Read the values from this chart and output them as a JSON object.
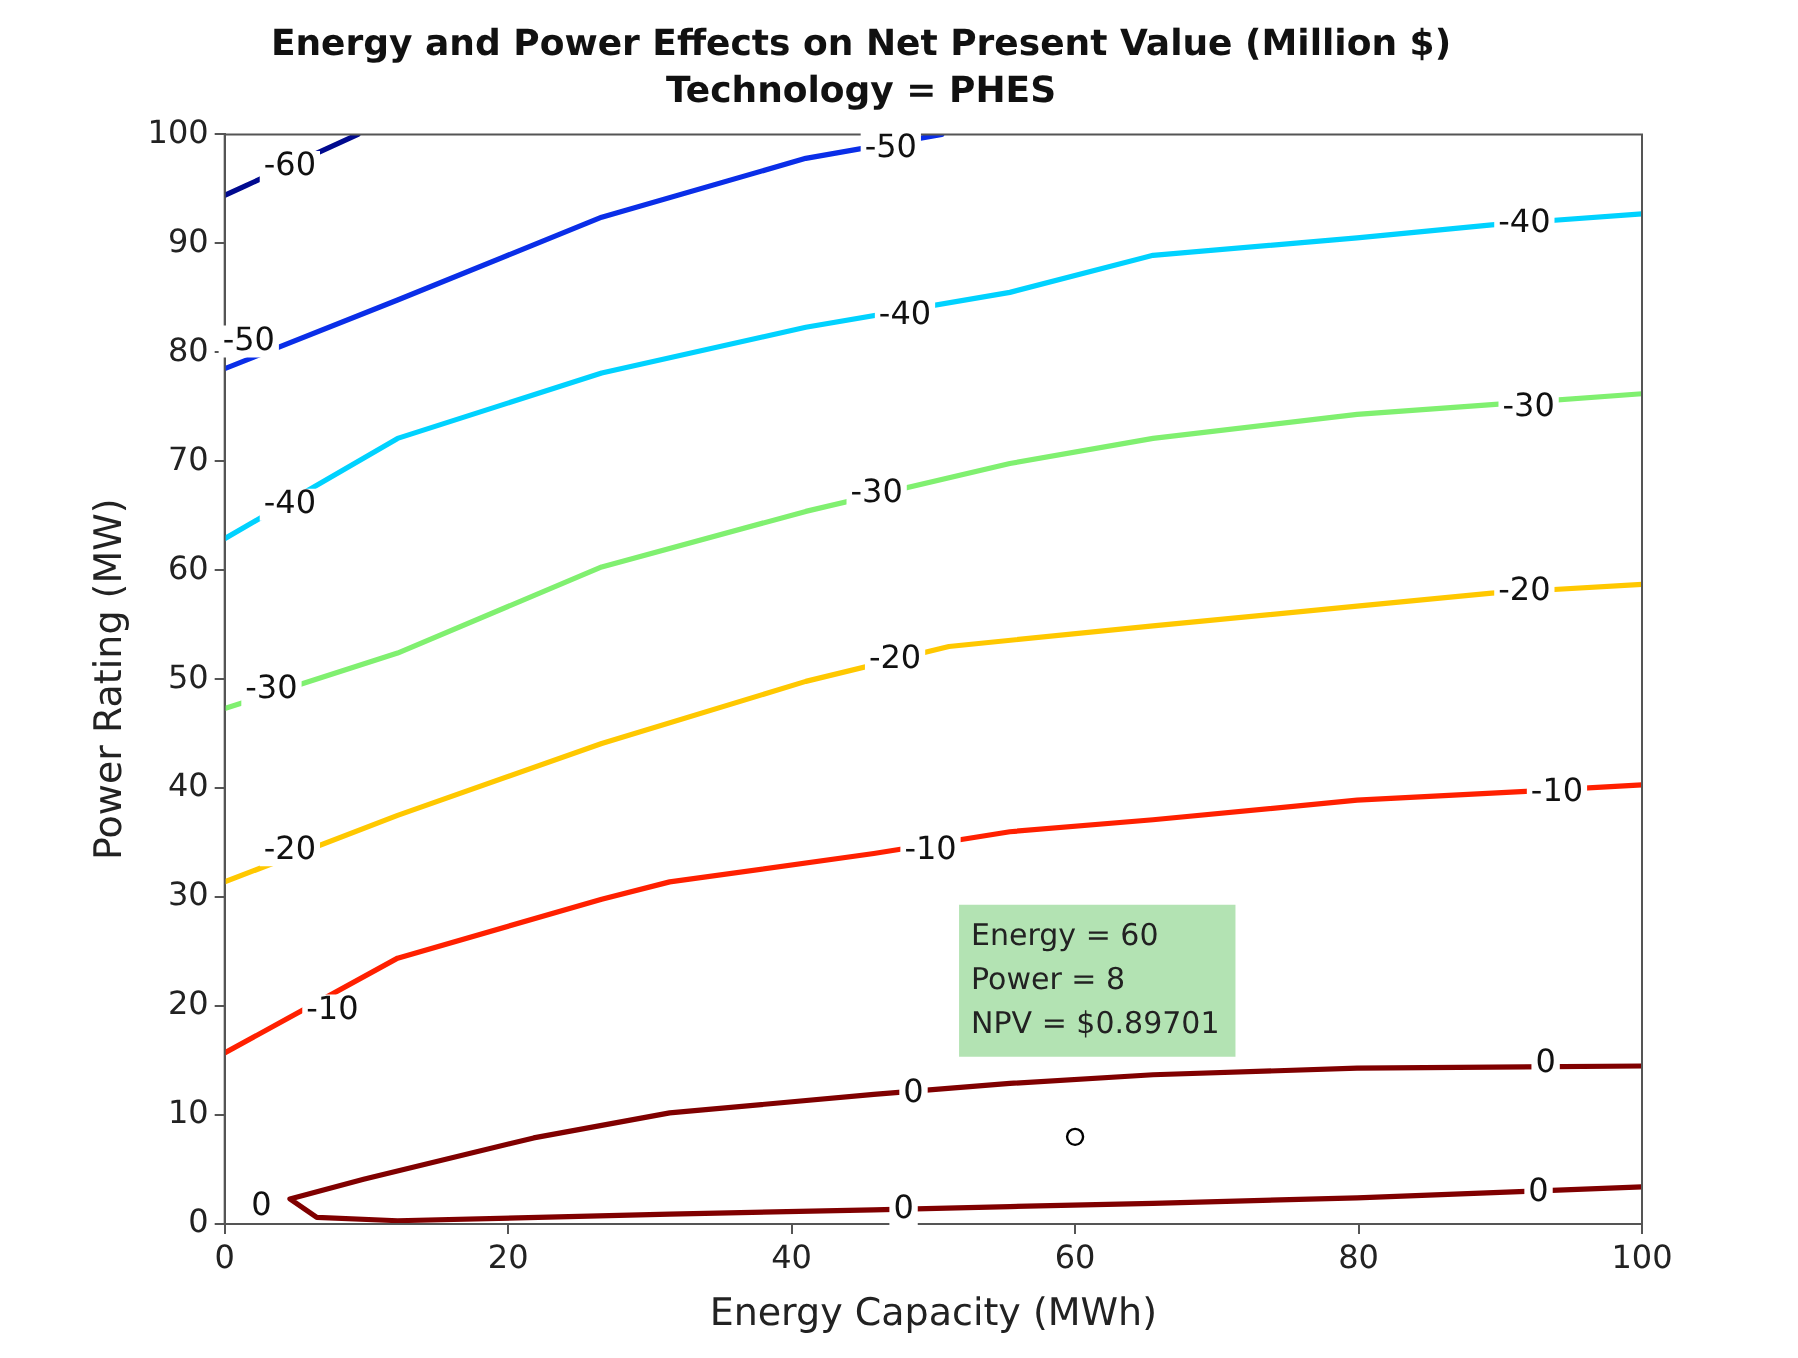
{
  "chart_data": {
    "type": "line",
    "title": "Energy and Power Effects on Net Present Value (Million $)",
    "subtitle": "Technology = PHES",
    "xlabel": "Energy Capacity (MWh)",
    "ylabel": "Power Rating (MW)",
    "xlim": [
      0,
      100
    ],
    "ylim": [
      0,
      100
    ],
    "xticks": [
      0,
      20,
      40,
      60,
      80,
      100
    ],
    "yticks": [
      0,
      10,
      20,
      30,
      40,
      50,
      60,
      70,
      80,
      90,
      100
    ],
    "grid": false,
    "legend": false,
    "marker": "none",
    "line_style": "solid",
    "series": [
      {
        "color": "#000a8f",
        "x": [
          0,
          1.5,
          9.4
        ],
        "values": [
          94.4,
          95.3,
          100
        ]
      },
      {
        "color": "#0a2ee8",
        "x": [
          0,
          12.2,
          26.6,
          41,
          50.6
        ],
        "values": [
          78.5,
          84.8,
          92.4,
          97.8,
          100
        ]
      },
      {
        "color": "#00d2ff",
        "x": [
          0,
          12.2,
          26.6,
          41,
          55.4,
          65.5,
          79.9,
          89.4,
          100
        ],
        "values": [
          62.9,
          72.1,
          78.1,
          82.3,
          85.5,
          88.9,
          90.5,
          91.7,
          92.7
        ]
      },
      {
        "color": "#80f070",
        "x": [
          0,
          12.2,
          26.6,
          41,
          55.4,
          65.5,
          79.9,
          89.4,
          100
        ],
        "values": [
          47.3,
          52.4,
          60.3,
          65.4,
          69.8,
          72.1,
          74.3,
          75.2,
          76.2
        ]
      },
      {
        "color": "#ffc800",
        "x": [
          0,
          12.2,
          26.6,
          41,
          51.1,
          65.5,
          79.9,
          89.4,
          100
        ],
        "values": [
          31.4,
          37.5,
          44.1,
          49.8,
          53,
          54.9,
          56.7,
          57.9,
          58.7
        ]
      },
      {
        "color": "#ff2000",
        "x": [
          0,
          12.2,
          26.6,
          31.4,
          45.8,
          55.4,
          65.5,
          79.9,
          91.8,
          100
        ],
        "values": [
          15.7,
          24.4,
          29.8,
          31.4,
          34,
          36,
          37.1,
          38.9,
          39.7,
          40.3
        ]
      },
      {
        "color": "#800000",
        "x": [
          100,
          79.9,
          65.5,
          55.4,
          45.8,
          31.4,
          21.8,
          9.8,
          4.6,
          6.5,
          12.2,
          31.4,
          45.8,
          55.4,
          65.5,
          79.9,
          91.8,
          100
        ],
        "values": [
          14.5,
          14.3,
          13.7,
          12.9,
          11.9,
          10.2,
          7.9,
          4.1,
          2.3,
          0.6,
          0.3,
          0.9,
          1.3,
          1.6,
          1.9,
          2.4,
          3,
          3.4
        ]
      },
      {
        "type": "scatter",
        "color": "#000000",
        "marker": "circle",
        "x": [
          60
        ],
        "values": [
          8
        ]
      }
    ],
    "annotations": [
      {
        "text": "-60",
        "x": 4.6,
        "y": 97
      },
      {
        "text": "-50",
        "x": 1.7,
        "y": 81
      },
      {
        "text": "-50",
        "x": 47,
        "y": 98.7
      },
      {
        "text": "-40",
        "x": 4.6,
        "y": 66
      },
      {
        "text": "-40",
        "x": 48,
        "y": 83.4
      },
      {
        "text": "-40",
        "x": 91.7,
        "y": 91.8
      },
      {
        "text": "-30",
        "x": 3.3,
        "y": 49
      },
      {
        "text": "-30",
        "x": 46,
        "y": 67
      },
      {
        "text": "-30",
        "x": 92,
        "y": 74.9
      },
      {
        "text": "-20",
        "x": 4.6,
        "y": 34.3
      },
      {
        "text": "-20",
        "x": 47.3,
        "y": 51.8
      },
      {
        "text": "-20",
        "x": 91.7,
        "y": 58
      },
      {
        "text": "-10",
        "x": 7.6,
        "y": 19.6
      },
      {
        "text": "-10",
        "x": 49.8,
        "y": 34.3
      },
      {
        "text": "-10",
        "x": 94,
        "y": 39.6
      },
      {
        "text": "0",
        "x": 2.6,
        "y": 1.6
      },
      {
        "text": "0",
        "x": 48.6,
        "y": 12
      },
      {
        "text": "0",
        "x": 93.2,
        "y": 14.7
      },
      {
        "text": "0",
        "x": 47.9,
        "y": 1.3
      },
      {
        "text": "0",
        "x": 92.7,
        "y": 2.9
      },
      "Energy = 60\nPower = 8\nNPV = $0.89701"
    ]
  }
}
